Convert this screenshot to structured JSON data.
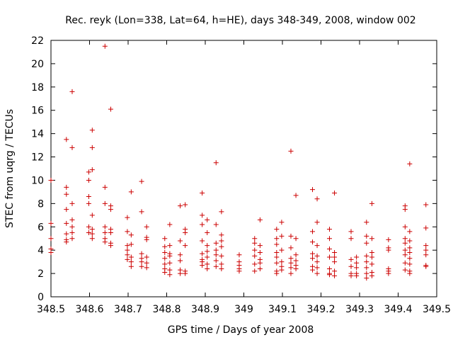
{
  "chart_data": {
    "type": "scatter",
    "title": "Rec. reyk (Lon=338, Lat=64, h=HE), days 348-349, 2008, window 002",
    "xlabel": "GPS time / Days of year 2008",
    "ylabel": "STEC from uqrg / TECUs",
    "xlim": [
      348.5,
      349.5
    ],
    "ylim": [
      0,
      22
    ],
    "xticks": [
      "348.5",
      "348.6",
      "348.7",
      "348.8",
      "348.9",
      "349",
      "349.1",
      "349.2",
      "349.3",
      "349.4",
      "349.5"
    ],
    "yticks": [
      "0",
      "2",
      "4",
      "6",
      "8",
      "10",
      "12",
      "14",
      "16",
      "18",
      "20",
      "22"
    ],
    "grid": false,
    "marker": "+",
    "color": "#cc0000",
    "points": [
      [
        348.5,
        10.0
      ],
      [
        348.5,
        6.3
      ],
      [
        348.5,
        5.0
      ],
      [
        348.5,
        4.1
      ],
      [
        348.5,
        3.8
      ],
      [
        348.54,
        13.5
      ],
      [
        348.54,
        9.4
      ],
      [
        348.54,
        8.8
      ],
      [
        348.54,
        7.5
      ],
      [
        348.54,
        6.3
      ],
      [
        348.54,
        5.4
      ],
      [
        348.54,
        4.9
      ],
      [
        348.54,
        4.7
      ],
      [
        348.555,
        17.6
      ],
      [
        348.555,
        12.8
      ],
      [
        348.555,
        8.0
      ],
      [
        348.555,
        6.6
      ],
      [
        348.555,
        6.0
      ],
      [
        348.555,
        5.5
      ],
      [
        348.555,
        5.0
      ],
      [
        348.598,
        10.7
      ],
      [
        348.598,
        10.0
      ],
      [
        348.598,
        8.6
      ],
      [
        348.598,
        8.0
      ],
      [
        348.598,
        6.0
      ],
      [
        348.598,
        5.5
      ],
      [
        348.607,
        14.3
      ],
      [
        348.607,
        12.8
      ],
      [
        348.607,
        10.9
      ],
      [
        348.607,
        7.0
      ],
      [
        348.607,
        5.8
      ],
      [
        348.607,
        5.4
      ],
      [
        348.607,
        5.0
      ],
      [
        348.64,
        21.5
      ],
      [
        348.64,
        9.4
      ],
      [
        348.64,
        8.0
      ],
      [
        348.64,
        6.0
      ],
      [
        348.64,
        5.5
      ],
      [
        348.64,
        5.0
      ],
      [
        348.64,
        4.7
      ],
      [
        348.655,
        16.1
      ],
      [
        348.655,
        7.8
      ],
      [
        348.655,
        7.5
      ],
      [
        348.655,
        5.8
      ],
      [
        348.655,
        5.5
      ],
      [
        348.655,
        4.6
      ],
      [
        348.655,
        4.4
      ],
      [
        348.698,
        6.8
      ],
      [
        348.698,
        5.6
      ],
      [
        348.698,
        4.4
      ],
      [
        348.698,
        4.0
      ],
      [
        348.698,
        3.6
      ],
      [
        348.698,
        3.2
      ],
      [
        348.708,
        9.0
      ],
      [
        348.708,
        5.3
      ],
      [
        348.708,
        4.5
      ],
      [
        348.708,
        3.4
      ],
      [
        348.708,
        3.0
      ],
      [
        348.708,
        2.6
      ],
      [
        348.735,
        9.9
      ],
      [
        348.735,
        7.3
      ],
      [
        348.735,
        3.7
      ],
      [
        348.735,
        3.3
      ],
      [
        348.735,
        3.0
      ],
      [
        348.735,
        2.6
      ],
      [
        348.748,
        6.0
      ],
      [
        348.748,
        5.1
      ],
      [
        348.748,
        4.9
      ],
      [
        348.748,
        3.4
      ],
      [
        348.748,
        2.9
      ],
      [
        348.748,
        2.5
      ],
      [
        348.795,
        5.0
      ],
      [
        348.795,
        4.3
      ],
      [
        348.795,
        3.8
      ],
      [
        348.795,
        3.3
      ],
      [
        348.795,
        2.8
      ],
      [
        348.795,
        2.4
      ],
      [
        348.795,
        2.1
      ],
      [
        348.808,
        6.2
      ],
      [
        348.808,
        4.4
      ],
      [
        348.808,
        3.7
      ],
      [
        348.808,
        3.5
      ],
      [
        348.808,
        2.9
      ],
      [
        348.808,
        2.3
      ],
      [
        348.808,
        1.9
      ],
      [
        348.835,
        7.8
      ],
      [
        348.835,
        4.8
      ],
      [
        348.835,
        3.6
      ],
      [
        348.835,
        3.1
      ],
      [
        348.835,
        2.3
      ],
      [
        348.835,
        2.0
      ],
      [
        348.848,
        7.9
      ],
      [
        348.848,
        5.8
      ],
      [
        348.848,
        5.5
      ],
      [
        348.848,
        4.4
      ],
      [
        348.848,
        2.2
      ],
      [
        348.848,
        2.0
      ],
      [
        348.892,
        8.9
      ],
      [
        348.892,
        7.0
      ],
      [
        348.892,
        6.2
      ],
      [
        348.892,
        4.8
      ],
      [
        348.892,
        3.7
      ],
      [
        348.892,
        3.2
      ],
      [
        348.892,
        3.0
      ],
      [
        348.892,
        2.7
      ],
      [
        348.905,
        6.6
      ],
      [
        348.905,
        5.5
      ],
      [
        348.905,
        4.4
      ],
      [
        348.905,
        3.9
      ],
      [
        348.905,
        3.4
      ],
      [
        348.905,
        2.8
      ],
      [
        348.905,
        2.4
      ],
      [
        348.928,
        11.5
      ],
      [
        348.928,
        6.2
      ],
      [
        348.928,
        4.6
      ],
      [
        348.928,
        4.0
      ],
      [
        348.928,
        3.6
      ],
      [
        348.928,
        3.1
      ],
      [
        348.928,
        2.6
      ],
      [
        348.942,
        7.3
      ],
      [
        348.942,
        5.3
      ],
      [
        348.942,
        4.8
      ],
      [
        348.942,
        4.3
      ],
      [
        348.942,
        3.5
      ],
      [
        348.942,
        2.8
      ],
      [
        348.942,
        2.4
      ],
      [
        348.988,
        3.6
      ],
      [
        348.988,
        3.0
      ],
      [
        348.988,
        2.7
      ],
      [
        348.988,
        2.4
      ],
      [
        348.988,
        2.2
      ],
      [
        349.028,
        5.0
      ],
      [
        349.028,
        4.6
      ],
      [
        349.028,
        4.0
      ],
      [
        349.028,
        3.5
      ],
      [
        349.028,
        2.8
      ],
      [
        349.028,
        2.2
      ],
      [
        349.042,
        6.6
      ],
      [
        349.042,
        4.4
      ],
      [
        349.042,
        3.8
      ],
      [
        349.042,
        3.2
      ],
      [
        349.042,
        2.9
      ],
      [
        349.042,
        2.4
      ],
      [
        349.085,
        5.8
      ],
      [
        349.085,
        5.0
      ],
      [
        349.085,
        4.5
      ],
      [
        349.085,
        3.8
      ],
      [
        349.085,
        3.4
      ],
      [
        349.085,
        2.9
      ],
      [
        349.085,
        2.2
      ],
      [
        349.085,
        2.0
      ],
      [
        349.098,
        6.4
      ],
      [
        349.098,
        5.2
      ],
      [
        349.098,
        4.0
      ],
      [
        349.098,
        3.0
      ],
      [
        349.098,
        2.6
      ],
      [
        349.098,
        2.3
      ],
      [
        349.122,
        12.5
      ],
      [
        349.122,
        5.2
      ],
      [
        349.122,
        4.2
      ],
      [
        349.122,
        3.3
      ],
      [
        349.122,
        2.9
      ],
      [
        349.122,
        2.5
      ],
      [
        349.122,
        2.0
      ],
      [
        349.135,
        8.7
      ],
      [
        349.135,
        5.0
      ],
      [
        349.135,
        3.6
      ],
      [
        349.135,
        3.1
      ],
      [
        349.135,
        2.7
      ],
      [
        349.135,
        2.4
      ],
      [
        349.178,
        9.2
      ],
      [
        349.178,
        5.6
      ],
      [
        349.178,
        4.7
      ],
      [
        349.178,
        3.7
      ],
      [
        349.178,
        3.3
      ],
      [
        349.178,
        2.6
      ],
      [
        349.178,
        2.3
      ],
      [
        349.19,
        8.4
      ],
      [
        349.19,
        6.4
      ],
      [
        349.19,
        4.4
      ],
      [
        349.19,
        3.5
      ],
      [
        349.19,
        3.0
      ],
      [
        349.19,
        2.5
      ],
      [
        349.19,
        2.0
      ],
      [
        349.222,
        5.8
      ],
      [
        349.222,
        5.0
      ],
      [
        349.222,
        4.1
      ],
      [
        349.222,
        3.4
      ],
      [
        349.222,
        2.4
      ],
      [
        349.222,
        2.0
      ],
      [
        349.222,
        1.9
      ],
      [
        349.235,
        8.9
      ],
      [
        349.235,
        3.8
      ],
      [
        349.235,
        3.4
      ],
      [
        349.235,
        3.0
      ],
      [
        349.235,
        2.2
      ],
      [
        349.235,
        1.8
      ],
      [
        349.278,
        5.6
      ],
      [
        349.278,
        5.0
      ],
      [
        349.278,
        3.2
      ],
      [
        349.278,
        2.6
      ],
      [
        349.278,
        2.0
      ],
      [
        349.278,
        1.8
      ],
      [
        349.292,
        3.4
      ],
      [
        349.292,
        2.9
      ],
      [
        349.292,
        2.5
      ],
      [
        349.292,
        2.0
      ],
      [
        349.292,
        1.8
      ],
      [
        349.318,
        6.4
      ],
      [
        349.318,
        5.2
      ],
      [
        349.318,
        4.6
      ],
      [
        349.318,
        3.5
      ],
      [
        349.318,
        3.0
      ],
      [
        349.318,
        2.5
      ],
      [
        349.318,
        2.0
      ],
      [
        349.318,
        1.6
      ],
      [
        349.332,
        8.0
      ],
      [
        349.332,
        5.0
      ],
      [
        349.332,
        3.8
      ],
      [
        349.332,
        3.4
      ],
      [
        349.332,
        2.8
      ],
      [
        349.332,
        2.1
      ],
      [
        349.332,
        1.8
      ],
      [
        349.375,
        4.9
      ],
      [
        349.375,
        4.2
      ],
      [
        349.375,
        4.0
      ],
      [
        349.375,
        2.4
      ],
      [
        349.375,
        2.2
      ],
      [
        349.375,
        2.0
      ],
      [
        349.418,
        7.8
      ],
      [
        349.418,
        7.5
      ],
      [
        349.418,
        6.0
      ],
      [
        349.418,
        5.0
      ],
      [
        349.418,
        4.6
      ],
      [
        349.418,
        4.0
      ],
      [
        349.418,
        3.6
      ],
      [
        349.418,
        2.9
      ],
      [
        349.418,
        2.3
      ],
      [
        349.43,
        11.4
      ],
      [
        349.43,
        5.6
      ],
      [
        349.43,
        4.8
      ],
      [
        349.43,
        4.2
      ],
      [
        349.43,
        3.8
      ],
      [
        349.43,
        3.3
      ],
      [
        349.43,
        2.8
      ],
      [
        349.43,
        2.2
      ],
      [
        349.43,
        2.0
      ],
      [
        349.472,
        7.9
      ],
      [
        349.472,
        5.9
      ],
      [
        349.472,
        4.4
      ],
      [
        349.472,
        4.0
      ],
      [
        349.472,
        3.6
      ],
      [
        349.472,
        2.7
      ],
      [
        349.472,
        2.6
      ]
    ]
  }
}
